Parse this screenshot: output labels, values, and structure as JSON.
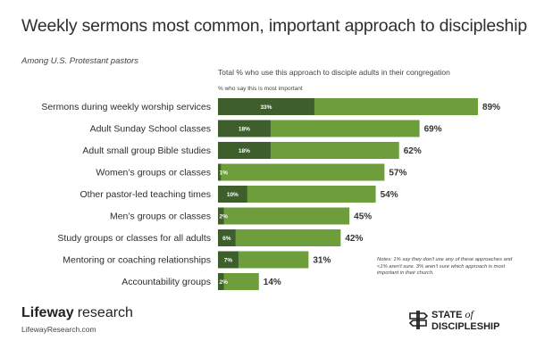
{
  "title": "Weekly sermons most common, important approach to discipleship",
  "subtitle": "Among U.S. Protestant pastors",
  "legend": {
    "total": "Total % who use this approach to disciple adults in their congregation",
    "important": "% who say this is most important"
  },
  "notes": "Notes: 1% say they don't use any of these approaches and <1% aren't sure. 3% aren't sure which approach is most important in their church.",
  "brand": {
    "part1": "Lifeway",
    "part2": "research",
    "url": "LifewayResearch.com"
  },
  "sod": {
    "line1": "STATE",
    "of": "of",
    "line2": "DISCIPLESHIP"
  },
  "colors": {
    "total": "#6e9e3c",
    "important": "#3e5e2c"
  },
  "chart_data": {
    "type": "bar",
    "orientation": "horizontal",
    "stacked_overlay": true,
    "categories": [
      "Sermons during weekly worship services",
      "Adult Sunday School classes",
      "Adult small group Bible studies",
      "Women’s groups or classes",
      "Other pastor-led teaching times",
      "Men’s groups or classes",
      "Study groups or classes for all adults",
      "Mentoring or coaching relationships",
      "Accountability groups"
    ],
    "series": [
      {
        "name": "Total % who use this approach to disciple adults in their congregation",
        "values": [
          89,
          69,
          62,
          57,
          54,
          45,
          42,
          31,
          14
        ],
        "labels": [
          "89%",
          "69%",
          "62%",
          "57%",
          "54%",
          "45%",
          "42%",
          "31%",
          "14%"
        ]
      },
      {
        "name": "% who say this is most important",
        "values": [
          33,
          18,
          18,
          1,
          10,
          2,
          6,
          7,
          2
        ],
        "labels": [
          "33%",
          "18%",
          "18%",
          "1%",
          "10%",
          "2%",
          "6%",
          "7%",
          "2%"
        ]
      }
    ],
    "xlim": [
      0,
      100
    ],
    "grid": false,
    "legend": "top"
  }
}
